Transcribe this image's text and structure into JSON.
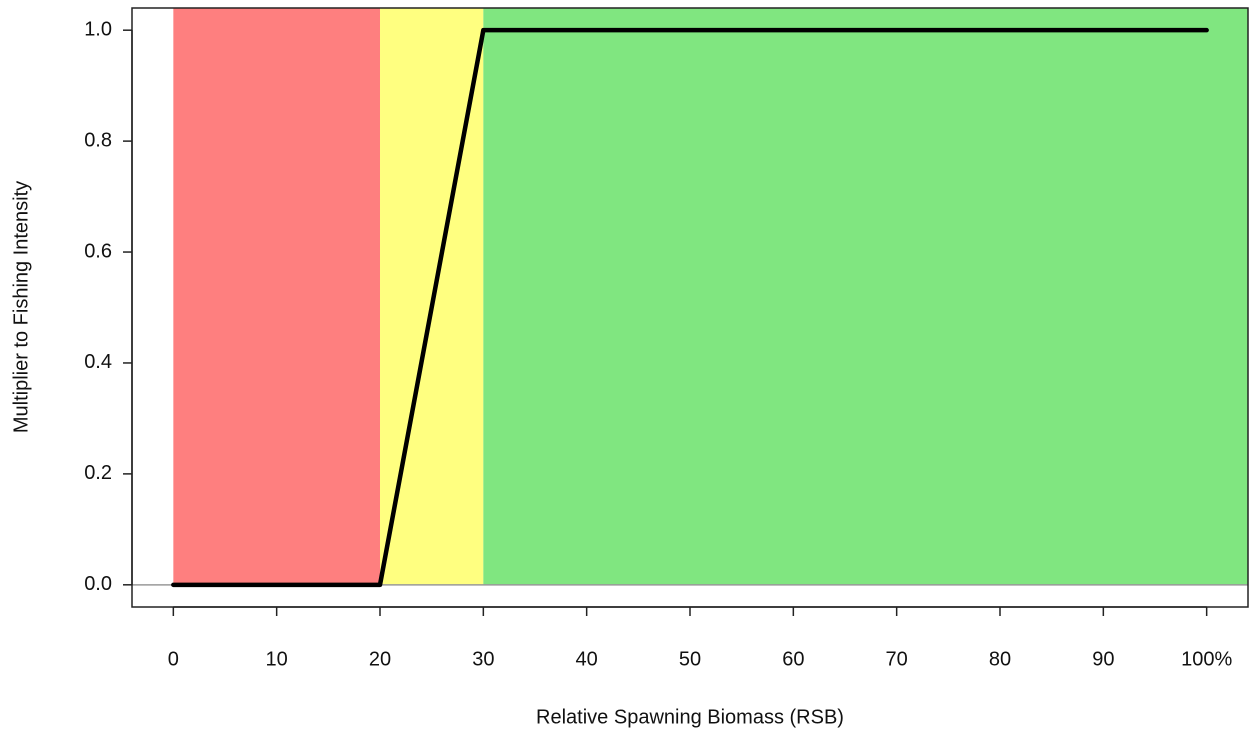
{
  "chart_data": {
    "type": "line",
    "x_label": "Relative Spawning Biomass (RSB)",
    "y_label": "Multiplier to Fishing Intensity",
    "x": [
      0,
      20,
      30,
      100
    ],
    "series": [
      {
        "color": "#000000",
        "values": [
          0,
          0,
          1,
          1
        ]
      }
    ],
    "zones": [
      {
        "from": 0,
        "to": 20,
        "color": "#fe7f7f"
      },
      {
        "from": 20,
        "to": 30,
        "color": "#ffff80"
      },
      {
        "from": 30,
        "to": 104,
        "color": "#80e680"
      }
    ],
    "baseline_color": "#999999",
    "xlim": [
      -4,
      104
    ],
    "ylim": [
      -0.04,
      1.04
    ],
    "xticks": [
      0,
      10,
      20,
      30,
      40,
      50,
      60,
      70,
      80,
      90,
      {
        "value": 100,
        "label": "100%"
      }
    ],
    "yticks": [
      {
        "value": 0,
        "label": "0.0"
      },
      {
        "value": 0.2,
        "label": "0.2"
      },
      {
        "value": 0.4,
        "label": "0.4"
      },
      {
        "value": 0.6,
        "label": "0.6"
      },
      {
        "value": 0.8,
        "label": "0.8"
      },
      {
        "value": 1,
        "label": "1.0"
      }
    ]
  }
}
